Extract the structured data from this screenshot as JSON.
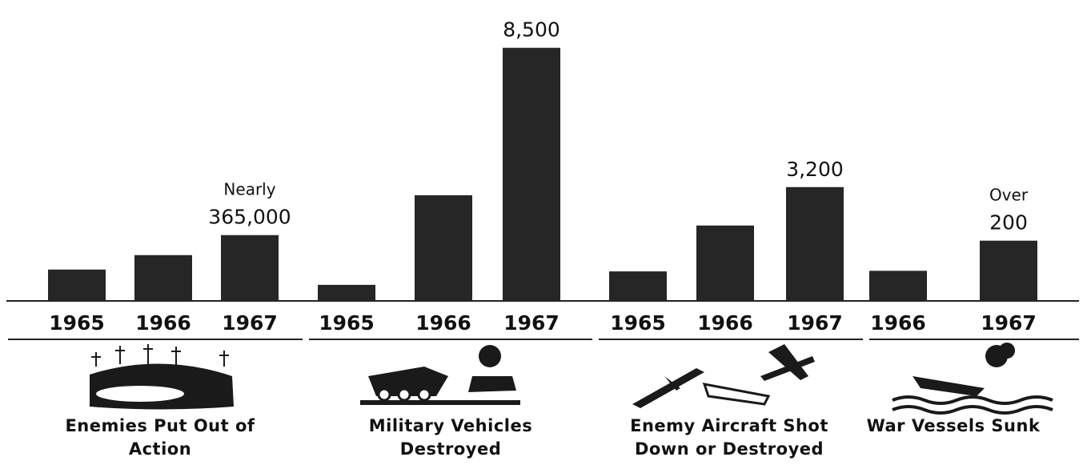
{
  "chart_data": [
    {
      "type": "bar",
      "title": "Enemies Put Out of Action",
      "categories": [
        "1965",
        "1966",
        "1967"
      ],
      "values": [
        174000,
        254000,
        365000
      ],
      "value_labels": [
        null,
        null,
        "365,000"
      ],
      "notes": [
        null,
        null,
        "Nearly"
      ],
      "color": "#262626",
      "ylim": [
        0,
        1420000
      ]
    },
    {
      "type": "bar",
      "title": "Military Vehicles Destroyed",
      "categories": [
        "1965",
        "1966",
        "1967"
      ],
      "values": [
        540,
        3550,
        8500
      ],
      "value_labels": [
        null,
        null,
        "8,500"
      ],
      "notes": [
        null,
        null,
        null
      ],
      "color": "#262626",
      "ylim": [
        0,
        8600
      ]
    },
    {
      "type": "bar",
      "title": "Enemy Aircraft Shot Down or Destroyed",
      "categories": [
        "1965",
        "1966",
        "1967"
      ],
      "values": [
        830,
        2120,
        3200
      ],
      "value_labels": [
        null,
        null,
        "3,200"
      ],
      "notes": [
        null,
        null,
        null
      ],
      "color": "#262626",
      "ylim": [
        0,
        7200
      ]
    },
    {
      "type": "bar",
      "title": "War Vessels Sunk",
      "categories": [
        "1966",
        "1967"
      ],
      "values": [
        100,
        200
      ],
      "value_labels": [
        null,
        "200"
      ],
      "notes": [
        null,
        "Over"
      ],
      "color": "#262626",
      "ylim": [
        0,
        850
      ]
    }
  ]
}
